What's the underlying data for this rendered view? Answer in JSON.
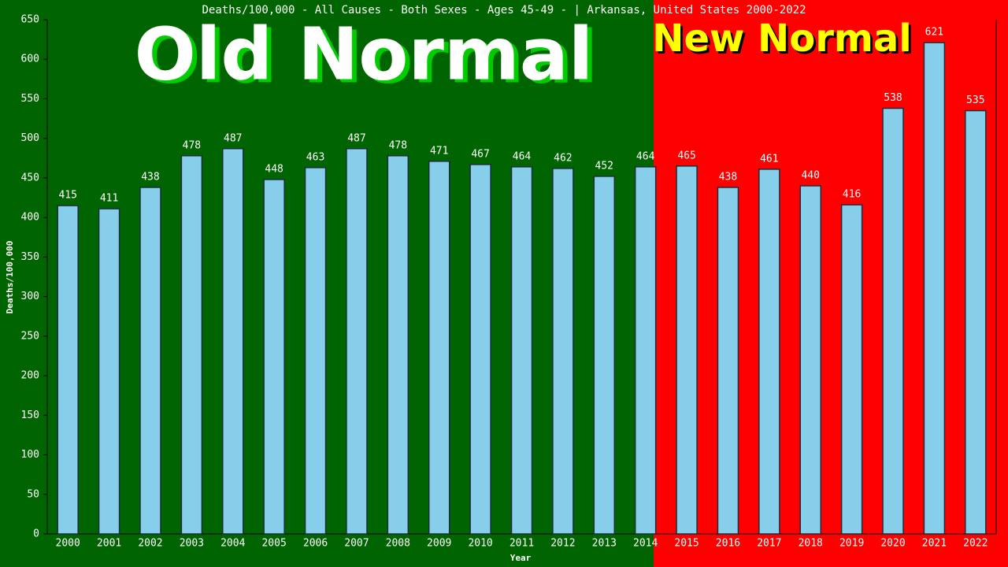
{
  "chart_data": {
    "type": "bar",
    "title": "Deaths/100,000 - All Causes - Both Sexes - Ages 45-49 -  | Arkansas, United States 2000-2022",
    "xlabel": "Year",
    "ylabel": "Deaths/100,000",
    "annotations": [
      "Old Normal",
      "New Normal"
    ],
    "categories": [
      "2000",
      "2001",
      "2002",
      "2003",
      "2004",
      "2005",
      "2006",
      "2007",
      "2008",
      "2009",
      "2010",
      "2011",
      "2012",
      "2013",
      "2014",
      "2015",
      "2016",
      "2017",
      "2018",
      "2019",
      "2020",
      "2021",
      "2022"
    ],
    "values": [
      415,
      411,
      438,
      478,
      487,
      448,
      463,
      487,
      478,
      471,
      467,
      464,
      462,
      452,
      464,
      465,
      438,
      461,
      440,
      416,
      538,
      621,
      535
    ],
    "color": "#87ceeb",
    "ylim": [
      0,
      650
    ],
    "yticks": [
      0,
      50,
      100,
      150,
      200,
      250,
      300,
      350,
      400,
      450,
      500,
      550,
      600,
      650
    ],
    "grid": false
  }
}
